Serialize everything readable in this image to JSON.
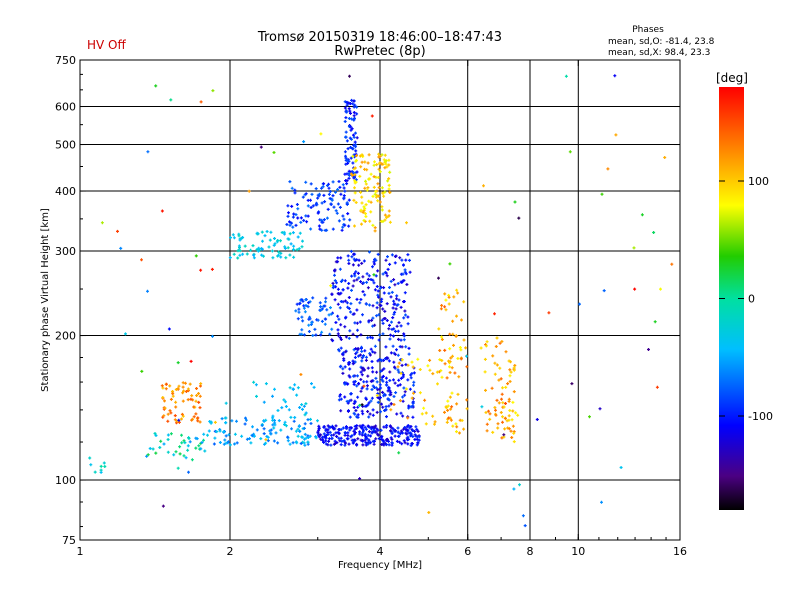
{
  "status": {
    "hv_label": "HV Off",
    "hv_color": "#cc0000"
  },
  "chart_data": {
    "type": "scatter",
    "title": "Tromsø 20150319 18:46:00–18:47:43",
    "subtitle": "RwPretec (8p)",
    "xlabel": "Frequency [MHz]",
    "ylabel": "Stationary phase Virtual Height [km]",
    "x_scale": "log",
    "y_scale": "log",
    "xlim": [
      1,
      16
    ],
    "ylim": [
      75,
      750
    ],
    "x_ticks": [
      1,
      2,
      4,
      6,
      8,
      10,
      16
    ],
    "x_tick_labels": [
      "1",
      "2",
      "4",
      "6",
      "8",
      "10",
      "16"
    ],
    "x_grid": [
      2,
      4,
      6,
      8,
      10
    ],
    "y_ticks": [
      75,
      100,
      200,
      300,
      400,
      500,
      600,
      750
    ],
    "y_tick_labels": [
      "75",
      "100",
      "200",
      "300",
      "400",
      "500",
      "600",
      "750"
    ],
    "y_grid": [
      100,
      200,
      300,
      400,
      500,
      600
    ],
    "grid": true,
    "legend": {
      "title": "Phases",
      "line1": "mean, sd,O: -81.4, 23.8",
      "line2": "mean, sd,X:  98.4, 23.3",
      "placement": "top-right"
    },
    "colorbar": {
      "label": "[deg]",
      "min": -180,
      "max": 180,
      "ticks": [
        100,
        0,
        -100
      ],
      "tick_labels": [
        "100",
        "0",
        "-100"
      ],
      "colormap": "rainbow"
    },
    "clusters": [
      {
        "f": [
          1.03,
          1.13
        ],
        "h": [
          103,
          112
        ],
        "phase": [
          -40,
          10
        ],
        "n": 8
      },
      {
        "f": [
          1.35,
          1.8
        ],
        "h": [
          110,
          125
        ],
        "phase": [
          -60,
          20
        ],
        "n": 40
      },
      {
        "f": [
          1.45,
          1.75
        ],
        "h": [
          130,
          160
        ],
        "phase": [
          100,
          150
        ],
        "n": 70
      },
      {
        "f": [
          1.8,
          3.0
        ],
        "h": [
          118,
          135
        ],
        "phase": [
          -80,
          -30
        ],
        "n": 120
      },
      {
        "f": [
          2.2,
          3.0
        ],
        "h": [
          135,
          160
        ],
        "phase": [
          -60,
          -20
        ],
        "n": 30
      },
      {
        "f": [
          3.0,
          4.8
        ],
        "h": [
          118,
          130
        ],
        "phase": [
          -130,
          -90
        ],
        "n": 260
      },
      {
        "f": [
          3.3,
          4.7
        ],
        "h": [
          135,
          190
        ],
        "phase": [
          -130,
          -80
        ],
        "n": 260
      },
      {
        "f": [
          3.2,
          4.6
        ],
        "h": [
          195,
          300
        ],
        "phase": [
          -130,
          -80
        ],
        "n": 240
      },
      {
        "f": [
          2.7,
          3.2
        ],
        "h": [
          200,
          240
        ],
        "phase": [
          -100,
          -60
        ],
        "n": 60
      },
      {
        "f": [
          2.0,
          2.8
        ],
        "h": [
          290,
          330
        ],
        "phase": [
          -50,
          -10
        ],
        "n": 80
      },
      {
        "f": [
          2.6,
          3.5
        ],
        "h": [
          330,
          420
        ],
        "phase": [
          -110,
          -70
        ],
        "n": 110
      },
      {
        "f": [
          3.4,
          3.6
        ],
        "h": [
          420,
          620
        ],
        "phase": [
          -120,
          -80
        ],
        "n": 90
      },
      {
        "f": [
          3.5,
          4.2
        ],
        "h": [
          330,
          480
        ],
        "phase": [
          70,
          120
        ],
        "n": 120
      },
      {
        "f": [
          4.2,
          5.6
        ],
        "h": [
          130,
          180
        ],
        "phase": [
          80,
          130
        ],
        "n": 40
      },
      {
        "f": [
          5.2,
          6.0
        ],
        "h": [
          125,
          250
        ],
        "phase": [
          80,
          140
        ],
        "n": 70
      },
      {
        "f": [
          6.5,
          7.2
        ],
        "h": [
          120,
          200
        ],
        "phase": [
          90,
          140
        ],
        "n": 50
      },
      {
        "f": [
          7.2,
          7.6
        ],
        "h": [
          120,
          180
        ],
        "phase": [
          80,
          130
        ],
        "n": 30
      },
      {
        "f": [
          1.1,
          16
        ],
        "h": [
          80,
          700
        ],
        "phase": [
          -180,
          180
        ],
        "n": 90
      }
    ]
  }
}
